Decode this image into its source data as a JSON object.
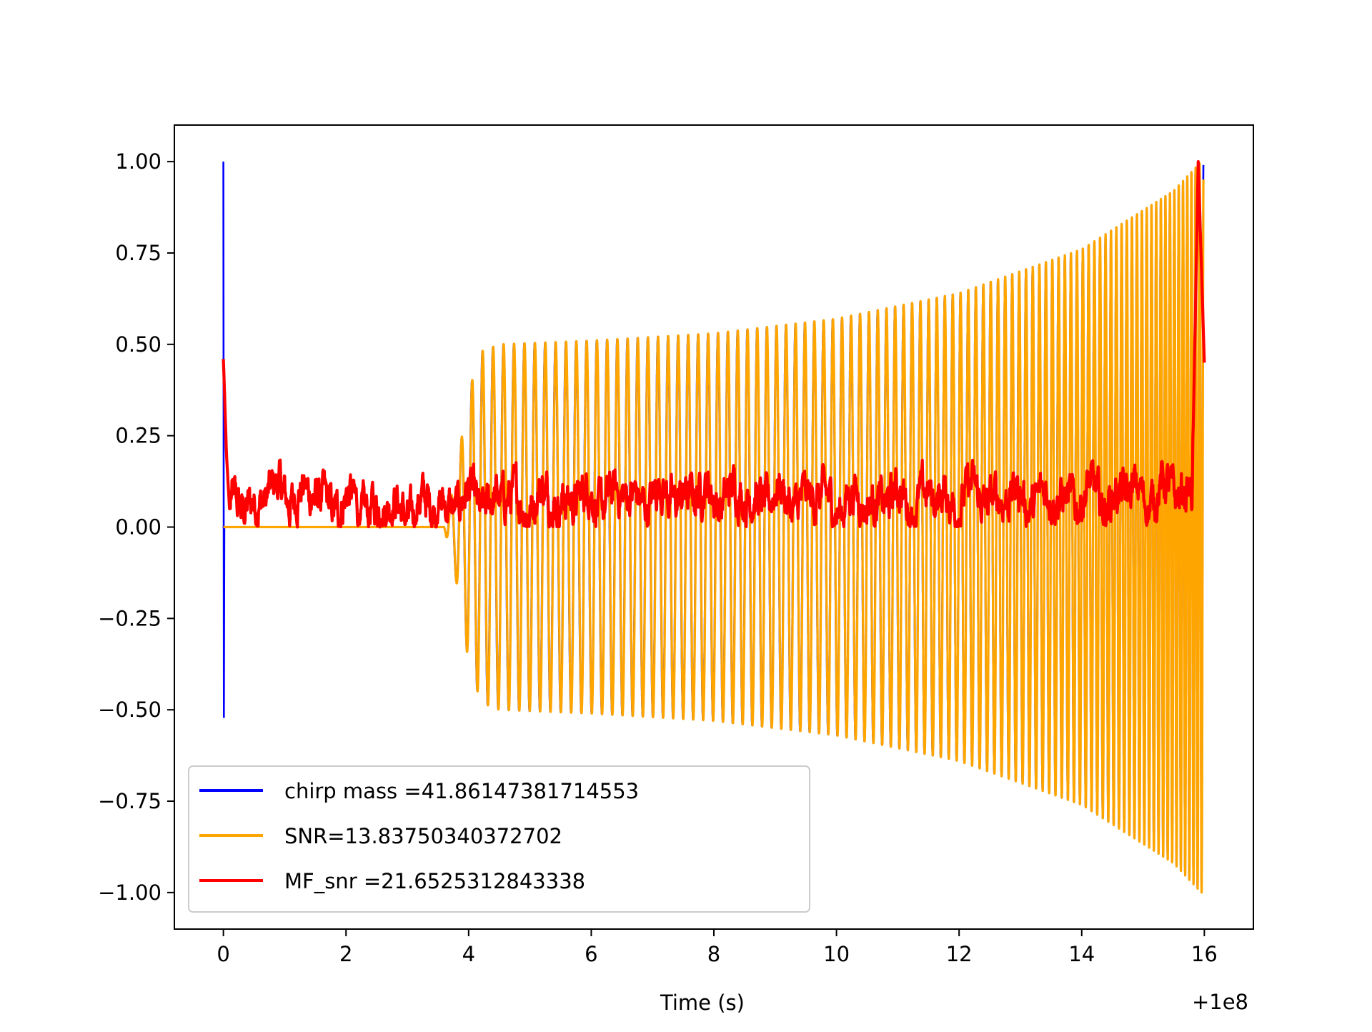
{
  "chart_data": {
    "type": "line",
    "title": "",
    "xlabel": "Time (s)",
    "ylabel": "",
    "x_offset_label": "+1e8",
    "xlim": [
      -0.8,
      16.8
    ],
    "ylim": [
      -1.1,
      1.1
    ],
    "x_ticks": [
      0,
      2,
      4,
      6,
      8,
      10,
      12,
      14,
      16
    ],
    "x_tick_labels": [
      "0",
      "2",
      "4",
      "6",
      "8",
      "10",
      "12",
      "14",
      "16"
    ],
    "y_ticks": [
      1.0,
      0.75,
      0.5,
      0.25,
      0.0,
      -0.25,
      -0.5,
      -0.75,
      -1.0
    ],
    "y_tick_labels": [
      "1.00",
      "0.75",
      "0.50",
      "0.25",
      "0.00",
      "−0.25",
      "−0.50",
      "−0.75",
      "−1.00"
    ],
    "grid": false,
    "legend_position": "lower-left",
    "series": [
      {
        "name": "chirp mass =41.86147381714553",
        "color": "#0000ff",
        "description_points": {
          "x": [
            0.0,
            0.0,
            0.01,
            0.02,
            0.05,
            3.6,
            3.8,
            4.0,
            4.2,
            4.5,
            6.0,
            8.0,
            10.0,
            12.0,
            14.0,
            15.5,
            15.95,
            16.0
          ],
          "envelope": [
            1.0,
            -0.52,
            0.0,
            0.0,
            0.0,
            0.0,
            0.15,
            0.37,
            0.48,
            0.5,
            0.51,
            0.53,
            0.57,
            0.64,
            0.76,
            0.92,
            1.0,
            1.0
          ]
        }
      },
      {
        "name": "SNR=13.83750340372702",
        "color": "#ffa500",
        "description_points": {
          "x": [
            0.0,
            3.6,
            3.8,
            4.0,
            4.2,
            4.5,
            6.0,
            8.0,
            10.0,
            12.0,
            14.0,
            15.5,
            15.95,
            16.0
          ],
          "envelope": [
            0.0,
            0.0,
            0.15,
            0.37,
            0.48,
            0.5,
            0.51,
            0.53,
            0.57,
            0.64,
            0.76,
            0.92,
            1.0,
            1.0
          ]
        }
      },
      {
        "name": "MF_snr =21.6525312843338",
        "color": "#ff0000",
        "description_points": {
          "x": [
            0.0,
            0.05,
            0.1,
            0.5,
            1.0,
            2.0,
            3.0,
            4.0,
            6.0,
            8.0,
            10.0,
            12.0,
            14.0,
            15.8,
            15.9,
            16.0
          ],
          "y": [
            0.46,
            0.2,
            0.05,
            0.07,
            0.1,
            0.06,
            0.05,
            0.07,
            0.08,
            0.09,
            0.07,
            0.08,
            0.08,
            0.1,
            1.0,
            0.45
          ]
        }
      }
    ]
  }
}
